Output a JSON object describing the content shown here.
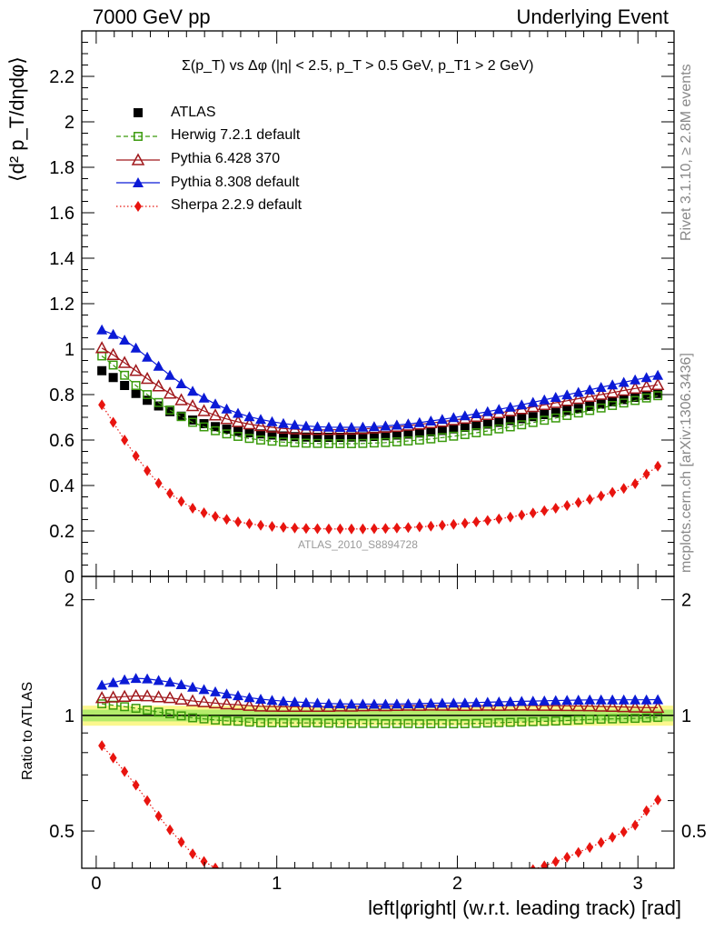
{
  "header": {
    "left": "7000 GeV pp",
    "right": "Underlying Event"
  },
  "side_text": {
    "rivet": "Rivet 3.1.10, ≥ 2.8M events",
    "mcplots": "mcplots.cern.ch [arXiv:1306.3436]"
  },
  "analysis_id": "ATLAS_2010_S8894728",
  "chart_data": {
    "type": "scatter",
    "title": "Σ(p_T) vs Δφ (|η| < 2.5, p_T > 0.5 GeV, p_T1 > 2 GeV)",
    "xlabel": "left|φright| (w.r.t. leading track) [rad]",
    "ylabel_main": "⟨d² p_T/dηdφ⟩",
    "ylabel_ratio": "Ratio to ATLAS",
    "xlim": [
      -0.08,
      3.2
    ],
    "main_ylim": [
      0,
      2.4
    ],
    "ratio_ylim": [
      0.4,
      2.3
    ],
    "ratio_scale": "log",
    "x_ticks": [
      "0",
      "1",
      "2",
      "3"
    ],
    "main_y_ticks": [
      "0",
      "0.2",
      "0.4",
      "0.6",
      "0.8",
      "1",
      "1.2",
      "1.4",
      "1.6",
      "1.8",
      "2",
      "2.2"
    ],
    "ratio_y_ticks": [
      "0.5",
      "1",
      "2"
    ],
    "legend_position": "top-left",
    "x": [
      0.0314,
      0.0942,
      0.1571,
      0.2199,
      0.2827,
      0.3456,
      0.4084,
      0.4712,
      0.5341,
      0.5969,
      0.6597,
      0.7226,
      0.7854,
      0.8482,
      0.9111,
      0.9739,
      1.0367,
      1.0996,
      1.1624,
      1.2252,
      1.2881,
      1.3509,
      1.4137,
      1.4765,
      1.5394,
      1.6022,
      1.665,
      1.7279,
      1.7907,
      1.8535,
      1.9164,
      1.9792,
      2.042,
      2.1049,
      2.1677,
      2.2305,
      2.2934,
      2.3562,
      2.419,
      2.4819,
      2.5447,
      2.6075,
      2.6704,
      2.7332,
      2.796,
      2.8588,
      2.9217,
      2.9845,
      3.0473,
      3.1102
    ],
    "series": [
      {
        "name": "ATLAS",
        "color": "#000000",
        "marker": "filled-square",
        "values": [
          0.905,
          0.875,
          0.84,
          0.805,
          0.775,
          0.75,
          0.725,
          0.705,
          0.688,
          0.672,
          0.659,
          0.648,
          0.638,
          0.632,
          0.627,
          0.622,
          0.618,
          0.615,
          0.613,
          0.612,
          0.612,
          0.612,
          0.613,
          0.614,
          0.616,
          0.619,
          0.622,
          0.626,
          0.631,
          0.636,
          0.642,
          0.649,
          0.656,
          0.663,
          0.67,
          0.678,
          0.686,
          0.694,
          0.703,
          0.712,
          0.721,
          0.73,
          0.739,
          0.748,
          0.758,
          0.768,
          0.778,
          0.788,
          0.797,
          0.805
        ]
      },
      {
        "name": "Herwig 7.2.1 default",
        "color": "#3a9a0c",
        "marker": "open-square",
        "line": "dashed",
        "values": [
          0.97,
          0.93,
          0.885,
          0.84,
          0.8,
          0.765,
          0.732,
          0.703,
          0.678,
          0.658,
          0.641,
          0.627,
          0.616,
          0.607,
          0.6,
          0.595,
          0.591,
          0.588,
          0.586,
          0.585,
          0.584,
          0.584,
          0.584,
          0.585,
          0.587,
          0.589,
          0.592,
          0.596,
          0.6,
          0.605,
          0.611,
          0.617,
          0.624,
          0.632,
          0.64,
          0.649,
          0.658,
          0.667,
          0.677,
          0.687,
          0.697,
          0.708,
          0.719,
          0.73,
          0.741,
          0.752,
          0.763,
          0.774,
          0.785,
          0.795
        ]
      },
      {
        "name": "Pythia 6.428 370",
        "color": "#a0181c",
        "marker": "open-triangle",
        "line": "solid",
        "values": [
          1.005,
          0.975,
          0.94,
          0.905,
          0.87,
          0.837,
          0.805,
          0.776,
          0.75,
          0.728,
          0.709,
          0.693,
          0.68,
          0.67,
          0.662,
          0.656,
          0.651,
          0.648,
          0.646,
          0.645,
          0.645,
          0.646,
          0.647,
          0.649,
          0.652,
          0.655,
          0.659,
          0.664,
          0.669,
          0.675,
          0.681,
          0.688,
          0.695,
          0.703,
          0.711,
          0.719,
          0.728,
          0.737,
          0.746,
          0.755,
          0.764,
          0.773,
          0.782,
          0.791,
          0.8,
          0.809,
          0.818,
          0.827,
          0.835,
          0.843
        ]
      },
      {
        "name": "Pythia 8.308 default",
        "color": "#0b1ad6",
        "marker": "filled-triangle",
        "line": "solid",
        "values": [
          1.085,
          1.065,
          1.04,
          1.005,
          0.965,
          0.925,
          0.885,
          0.848,
          0.815,
          0.785,
          0.759,
          0.737,
          0.718,
          0.703,
          0.691,
          0.681,
          0.673,
          0.667,
          0.662,
          0.659,
          0.657,
          0.656,
          0.656,
          0.657,
          0.659,
          0.662,
          0.666,
          0.671,
          0.677,
          0.684,
          0.691,
          0.699,
          0.707,
          0.716,
          0.725,
          0.735,
          0.745,
          0.755,
          0.766,
          0.777,
          0.788,
          0.799,
          0.81,
          0.821,
          0.832,
          0.843,
          0.854,
          0.865,
          0.875,
          0.885
        ]
      },
      {
        "name": "Sherpa 2.2.9 default",
        "color": "#e8140f",
        "marker": "filled-diamond",
        "line": "dotted",
        "values": [
          0.755,
          0.678,
          0.6,
          0.53,
          0.465,
          0.41,
          0.365,
          0.33,
          0.3,
          0.28,
          0.264,
          0.251,
          0.24,
          0.232,
          0.225,
          0.22,
          0.216,
          0.213,
          0.211,
          0.21,
          0.209,
          0.209,
          0.209,
          0.209,
          0.21,
          0.211,
          0.213,
          0.215,
          0.218,
          0.221,
          0.225,
          0.229,
          0.234,
          0.24,
          0.246,
          0.253,
          0.261,
          0.27,
          0.279,
          0.289,
          0.3,
          0.312,
          0.325,
          0.339,
          0.354,
          0.37,
          0.387,
          0.408,
          0.45,
          0.485
        ]
      }
    ]
  }
}
